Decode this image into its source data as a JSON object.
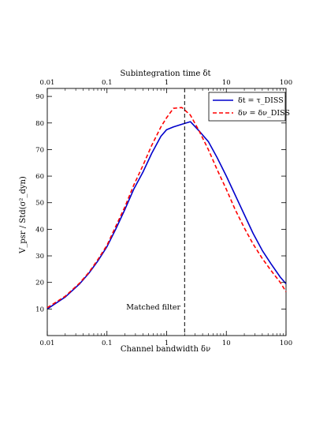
{
  "chart_data": {
    "type": "line",
    "xscale": "log",
    "xlim": [
      0.01,
      100
    ],
    "ylim": [
      0,
      93
    ],
    "xlabel": "Channel bandwidth δν",
    "top_xlabel": "Subintegration time δt",
    "ylabel": "V_psr / Std(σ²_dyn)",
    "x_tick_labels": [
      "0.01",
      "0.1",
      "1",
      "10",
      "100"
    ],
    "x_tick_values": [
      0.01,
      0.1,
      1,
      10,
      100
    ],
    "y_tick_labels": [
      "10",
      "20",
      "30",
      "40",
      "50",
      "60",
      "70",
      "80",
      "90"
    ],
    "y_tick_values": [
      10,
      20,
      30,
      40,
      50,
      60,
      70,
      80,
      90
    ],
    "grid": false,
    "legend_position": "top-right",
    "series": [
      {
        "name": "δt = τ_DISS",
        "color": "#0000cc",
        "dash": "solid",
        "x": [
          0.01,
          0.02,
          0.035,
          0.05,
          0.07,
          0.1,
          0.14,
          0.2,
          0.28,
          0.4,
          0.56,
          0.8,
          1.0,
          1.3,
          1.8,
          2.5,
          3.5,
          5.0,
          7.0,
          10.0,
          14.0,
          20.0,
          28.0,
          40.0,
          56.0,
          80.0,
          100.0
        ],
        "values": [
          10.0,
          14.5,
          19.5,
          23.5,
          28.0,
          33.5,
          40.0,
          47.5,
          55.0,
          61.5,
          68.5,
          75.0,
          77.5,
          78.5,
          79.5,
          80.5,
          77.0,
          73.0,
          67.0,
          60.0,
          53.0,
          45.5,
          38.5,
          32.0,
          27.0,
          22.0,
          19.5
        ]
      },
      {
        "name": "δν = δν_DISS",
        "color": "#ff0000",
        "dash": "dashed",
        "x": [
          0.01,
          0.02,
          0.035,
          0.05,
          0.07,
          0.1,
          0.14,
          0.2,
          0.28,
          0.4,
          0.56,
          0.8,
          1.0,
          1.3,
          1.8,
          2.5,
          3.5,
          5.0,
          7.0,
          10.0,
          14.0,
          20.0,
          28.0,
          40.0,
          56.0,
          80.0,
          100.0
        ],
        "values": [
          10.5,
          14.8,
          19.8,
          23.8,
          28.5,
          34.0,
          41.0,
          48.5,
          56.5,
          64.0,
          71.5,
          78.5,
          82.0,
          85.5,
          85.8,
          83.0,
          77.0,
          70.0,
          62.5,
          55.0,
          47.5,
          40.5,
          34.5,
          29.0,
          24.5,
          20.0,
          16.5
        ]
      }
    ],
    "vline": {
      "x": 2.0,
      "label": "Matched filter",
      "label_y": 12
    }
  }
}
